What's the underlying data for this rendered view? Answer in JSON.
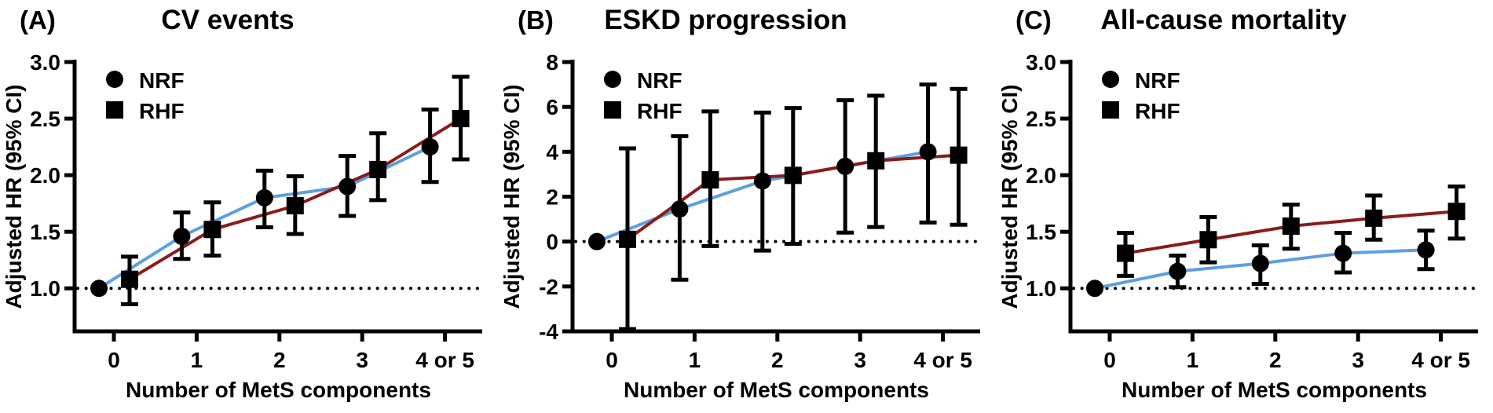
{
  "figure": {
    "background": "#ffffff",
    "x_axis_label": "Number of MetS components",
    "y_axis_label": "Adjusted HR (95% CI)",
    "x_tick_labels": [
      "0",
      "1",
      "2",
      "3",
      "4 or 5"
    ],
    "legend": [
      {
        "marker": "circle",
        "label": "NRF"
      },
      {
        "marker": "square",
        "label": "RHF"
      }
    ],
    "colors": {
      "nrf_line": "#5d9fe0",
      "rhf_line": "#8b1b1b",
      "marker": "#000000",
      "error_bar": "#000000",
      "axis": "#000000",
      "text": "#000000"
    }
  },
  "chart_data": [
    {
      "type": "line",
      "panel_label": "(A)",
      "title": "CV events",
      "xlabel": "Number of MetS components",
      "ylabel": "Adjusted HR (95% CI)",
      "categories": [
        "0",
        "1",
        "2",
        "3",
        "4 or 5"
      ],
      "ylim": [
        0.62,
        3.0
      ],
      "ytick_values": [
        1.0,
        1.5,
        2.0,
        2.5,
        3.0
      ],
      "ytick_labels": [
        "1.0",
        "1.5",
        "2.0",
        "2.5",
        "3.0"
      ],
      "reference_line_y": 1.0,
      "grid": false,
      "legend_position": "top-left-inside",
      "series": [
        {
          "name": "NRF",
          "marker": "circle",
          "color": "#5d9fe0",
          "values": [
            1.0,
            1.46,
            1.8,
            1.9,
            2.25
          ],
          "ci_low": [
            null,
            1.26,
            1.54,
            1.64,
            1.94
          ],
          "ci_high": [
            null,
            1.67,
            2.04,
            2.17,
            2.58
          ]
        },
        {
          "name": "RHF",
          "marker": "square",
          "color": "#8b1b1b",
          "values": [
            1.08,
            1.52,
            1.73,
            2.05,
            2.5
          ],
          "ci_low": [
            0.86,
            1.29,
            1.48,
            1.78,
            2.14
          ],
          "ci_high": [
            1.28,
            1.76,
            1.99,
            2.37,
            2.87
          ]
        }
      ]
    },
    {
      "type": "line",
      "panel_label": "(B)",
      "title": "ESKD progression",
      "xlabel": "Number of MetS components",
      "ylabel": "Adjusted HR (95% CI)",
      "categories": [
        "0",
        "1",
        "2",
        "3",
        "4 or 5"
      ],
      "ylim": [
        -4,
        8
      ],
      "ytick_values": [
        -4,
        -2,
        0,
        2,
        4,
        6,
        8
      ],
      "ytick_labels": [
        "-4",
        "-2",
        "0",
        "2",
        "4",
        "6",
        "8"
      ],
      "reference_line_y": 0,
      "grid": false,
      "legend_position": "top-left-inside",
      "series": [
        {
          "name": "NRF",
          "marker": "circle",
          "color": "#5d9fe0",
          "values": [
            0.0,
            1.45,
            2.7,
            3.35,
            4.0
          ],
          "ci_low": [
            null,
            -1.7,
            -0.4,
            0.4,
            0.85
          ],
          "ci_high": [
            null,
            4.7,
            5.75,
            6.3,
            7.0
          ]
        },
        {
          "name": "RHF",
          "marker": "square",
          "color": "#8b1b1b",
          "values": [
            0.1,
            2.75,
            2.95,
            3.6,
            3.85
          ],
          "ci_low": [
            -3.9,
            -0.2,
            -0.1,
            0.65,
            0.75
          ],
          "ci_high": [
            4.15,
            5.8,
            5.95,
            6.5,
            6.8
          ]
        }
      ]
    },
    {
      "type": "line",
      "panel_label": "(C)",
      "title": "All-cause mortality",
      "xlabel": "Number of MetS components",
      "ylabel": "Adjusted HR (95% CI)",
      "categories": [
        "0",
        "1",
        "2",
        "3",
        "4 or 5"
      ],
      "ylim": [
        0.62,
        3.0
      ],
      "ytick_values": [
        1.0,
        1.5,
        2.0,
        2.5,
        3.0
      ],
      "ytick_labels": [
        "1.0",
        "1.5",
        "2.0",
        "2.5",
        "3.0"
      ],
      "reference_line_y": 1.0,
      "grid": false,
      "legend_position": "top-left-inside",
      "series": [
        {
          "name": "NRF",
          "marker": "circle",
          "color": "#5d9fe0",
          "values": [
            1.0,
            1.15,
            1.22,
            1.31,
            1.34
          ],
          "ci_low": [
            null,
            1.01,
            1.04,
            1.14,
            1.17
          ],
          "ci_high": [
            null,
            1.29,
            1.38,
            1.49,
            1.51
          ]
        },
        {
          "name": "RHF",
          "marker": "square",
          "color": "#8b1b1b",
          "values": [
            1.31,
            1.43,
            1.55,
            1.62,
            1.68
          ],
          "ci_low": [
            1.11,
            1.23,
            1.35,
            1.43,
            1.44
          ],
          "ci_high": [
            1.49,
            1.63,
            1.74,
            1.82,
            1.9
          ]
        }
      ]
    }
  ]
}
